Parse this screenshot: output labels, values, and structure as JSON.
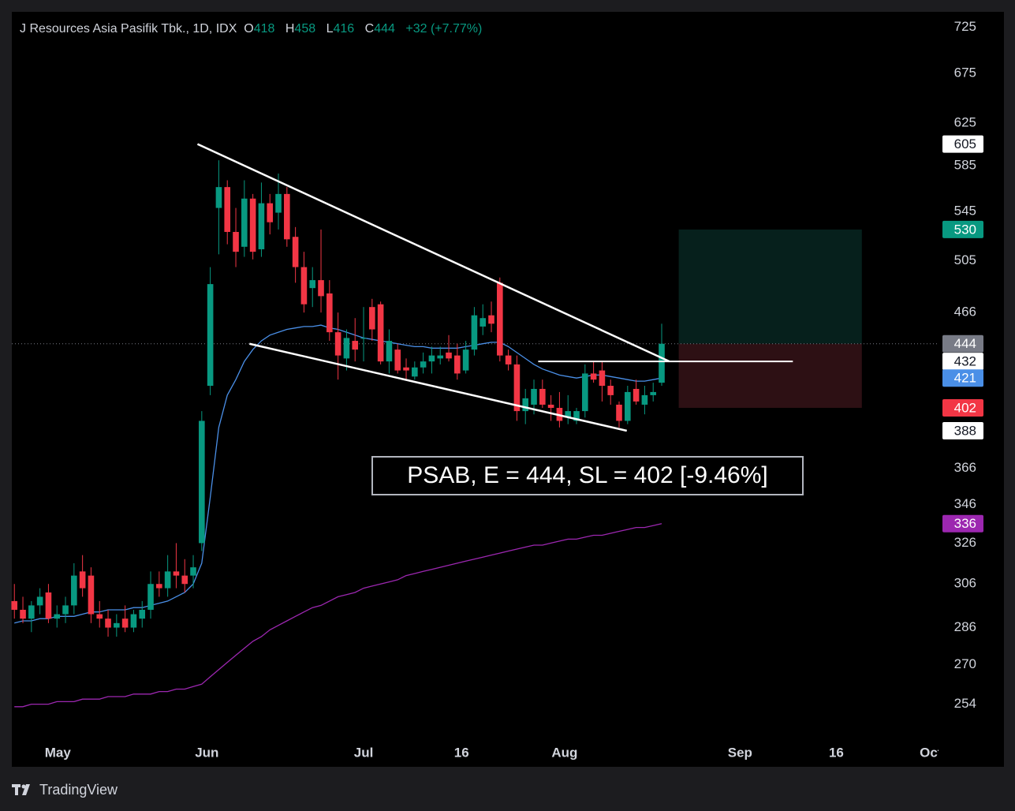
{
  "chart_data": {
    "type": "candlestick",
    "title": "J Resources Asia Pasifik Tbk., 1D, IDX",
    "ohlc_letters": {
      "open": "O",
      "high": "H",
      "low": "L",
      "close": "C"
    },
    "change_text": "+32 (+7.77%)",
    "annotation": "PSAB, E = 444, SL = 402 [-9.46%]",
    "footer": "TradingView",
    "log_scale": true,
    "grid": false,
    "up_color": "#089981",
    "down_color": "#f23645",
    "x": [
      0,
      1,
      2,
      3,
      4,
      5,
      6,
      7,
      8,
      9,
      10,
      11,
      12,
      13,
      14,
      15,
      16,
      17,
      18,
      19,
      20,
      21,
      22,
      23,
      24,
      25,
      26,
      27,
      28,
      29,
      30,
      31,
      32,
      33,
      34,
      35,
      36,
      37,
      38,
      39,
      40,
      41,
      42,
      43,
      44,
      45,
      46,
      47,
      48,
      49,
      50,
      51,
      52,
      53,
      54,
      55,
      56,
      57,
      58,
      59,
      60,
      61,
      62,
      63,
      64,
      65,
      66,
      67,
      68,
      69,
      70,
      71,
      72,
      73,
      74,
      75,
      76
    ],
    "open": [
      298,
      294,
      290,
      296,
      302,
      290,
      292,
      296,
      312,
      310,
      292,
      290,
      286,
      290,
      286,
      290,
      294,
      306,
      304,
      312,
      310,
      310,
      326,
      416,
      548,
      566,
      528,
      516,
      556,
      514,
      552,
      544,
      560,
      524,
      500,
      484,
      490,
      480,
      452,
      434,
      446,
      448,
      470,
      472,
      432,
      440,
      428,
      422,
      428,
      432,
      434,
      438,
      436,
      426,
      440,
      456,
      464,
      488,
      436,
      430,
      400,
      404,
      414,
      404,
      402,
      396,
      394,
      400,
      424,
      426,
      416,
      404,
      394,
      414,
      404,
      410,
      418
    ],
    "high": [
      306,
      300,
      298,
      304,
      306,
      296,
      300,
      316,
      320,
      314,
      298,
      294,
      292,
      296,
      294,
      298,
      312,
      312,
      320,
      326,
      318,
      320,
      400,
      500,
      590,
      572,
      548,
      572,
      560,
      570,
      560,
      578,
      566,
      532,
      512,
      500,
      530,
      490,
      466,
      454,
      462,
      470,
      476,
      474,
      454,
      444,
      434,
      432,
      438,
      442,
      442,
      450,
      444,
      446,
      470,
      472,
      474,
      492,
      440,
      436,
      414,
      420,
      420,
      410,
      412,
      410,
      402,
      430,
      432,
      432,
      420,
      406,
      416,
      420,
      416,
      418,
      458
    ],
    "low": [
      290,
      288,
      284,
      292,
      288,
      286,
      288,
      292,
      300,
      288,
      286,
      282,
      282,
      284,
      284,
      286,
      290,
      300,
      300,
      304,
      302,
      304,
      322,
      410,
      510,
      518,
      500,
      508,
      506,
      508,
      526,
      530,
      516,
      488,
      466,
      470,
      466,
      446,
      420,
      426,
      432,
      432,
      446,
      430,
      424,
      424,
      420,
      420,
      424,
      424,
      430,
      432,
      420,
      424,
      436,
      450,
      452,
      432,
      426,
      394,
      392,
      398,
      402,
      394,
      390,
      392,
      392,
      396,
      418,
      406,
      404,
      390,
      392,
      404,
      398,
      406,
      416
    ],
    "close": [
      294,
      290,
      296,
      300,
      290,
      292,
      296,
      310,
      304,
      292,
      290,
      286,
      288,
      286,
      292,
      294,
      306,
      304,
      312,
      310,
      306,
      314,
      394,
      487,
      566,
      528,
      512,
      556,
      512,
      552,
      536,
      560,
      522,
      500,
      472,
      490,
      478,
      452,
      436,
      448,
      440,
      448,
      454,
      432,
      446,
      426,
      426,
      428,
      432,
      436,
      436,
      434,
      424,
      440,
      464,
      462,
      458,
      436,
      430,
      400,
      408,
      414,
      404,
      402,
      394,
      400,
      400,
      424,
      420,
      416,
      410,
      394,
      412,
      406,
      410,
      412,
      444
    ],
    "series": [
      {
        "color": "#4a8fe7",
        "values": [
          288,
          289,
          289,
          290,
          290,
          291,
          291,
          291,
          292,
          293,
          293,
          294,
          294,
          294,
          295,
          295,
          296,
          297,
          298,
          300,
          302,
          306,
          316,
          350,
          390,
          410,
          420,
          432,
          440,
          446,
          450,
          452,
          454,
          455,
          456,
          456,
          457,
          455,
          454,
          452,
          450,
          448,
          447,
          446,
          445,
          444,
          443,
          442,
          442,
          441,
          441,
          441,
          441,
          442,
          443,
          444,
          445,
          445,
          442,
          438,
          434,
          430,
          427,
          425,
          423,
          422,
          421,
          422,
          423,
          423,
          422,
          421,
          420,
          419,
          419,
          420,
          421
        ]
      },
      {
        "color": "#9c27b0",
        "values": [
          253,
          253,
          254,
          254,
          254,
          255,
          255,
          255,
          256,
          256,
          256,
          257,
          257,
          257,
          258,
          258,
          258,
          259,
          259,
          260,
          260,
          261,
          262,
          265,
          268,
          271,
          274,
          277,
          280,
          282,
          285,
          287,
          289,
          291,
          293,
          295,
          296,
          298,
          300,
          301,
          302,
          304,
          305,
          306,
          307,
          308,
          310,
          311,
          312,
          313,
          314,
          315,
          316,
          317,
          318,
          319,
          320,
          321,
          322,
          323,
          324,
          325,
          325,
          326,
          327,
          328,
          328,
          329,
          330,
          330,
          331,
          332,
          333,
          334,
          334,
          335,
          336
        ]
      }
    ],
    "lines": [
      {
        "x": [
          21.5,
          76.9
        ],
        "y": [
          605,
          432
        ],
        "color": "#ffffff"
      },
      {
        "x": [
          27.6,
          71.9
        ],
        "y": [
          444,
          388
        ],
        "color": "#ffffff"
      }
    ],
    "hline": {
      "x": [
        61.5,
        91.4
      ],
      "y": 432,
      "color": "#ffffff"
    },
    "position": {
      "x": [
        78,
        99.5
      ],
      "entry": 444,
      "target": 530,
      "stop": 402,
      "target_color": "#089981",
      "stop_color": "#f23645",
      "target_fill": "#06201c",
      "stop_fill": "#2d1014"
    },
    "last_price_color": "#787b86",
    "line_label_bg": "#ffffff",
    "line_label_text": "#131722",
    "xlim": [
      -0.3,
      108.5
    ],
    "ylim": [
      230.5,
      742.6
    ],
    "yticks": [
      254,
      270,
      286,
      306,
      326,
      346,
      366,
      466,
      505,
      545,
      585,
      625,
      675,
      725
    ],
    "xticks": [
      {
        "value": 5.1,
        "label": "May"
      },
      {
        "value": 22.6,
        "label": "Jun"
      },
      {
        "value": 41,
        "label": "Jul"
      },
      {
        "value": 52.5,
        "label": "16"
      },
      {
        "value": 64.6,
        "label": "Aug"
      },
      {
        "value": 85.2,
        "label": "Sep"
      },
      {
        "value": 96.5,
        "label": "16"
      },
      {
        "value": 107.6,
        "label": "Oct"
      }
    ]
  }
}
